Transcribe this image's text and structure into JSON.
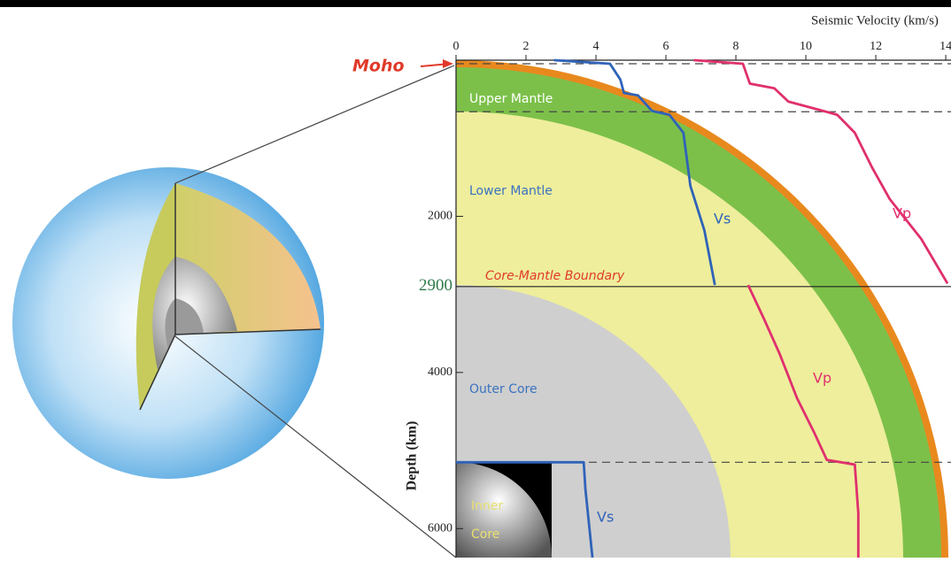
{
  "chart_data": {
    "type": "line",
    "x_label": "Seismic Velocity (km/s)",
    "y_label": "Depth (km)",
    "xlim": [
      0,
      14.15
    ],
    "xticks": [
      0,
      2,
      4,
      6,
      8,
      10,
      12,
      14
    ],
    "ylim": [
      0,
      6371
    ],
    "yticks": [
      2000,
      2900,
      4000,
      6000
    ],
    "dashed_depths": [
      45,
      660,
      5150
    ],
    "series": [
      {
        "name": "Vs",
        "color": "#2f63b8",
        "depth": [
          0,
          45,
          250,
          420,
          450,
          650,
          700,
          930,
          1610,
          2180,
          2880,
          null,
          5150,
          5150,
          5500,
          6371
        ],
        "values": [
          2.8,
          4.4,
          4.7,
          4.8,
          5.2,
          5.6,
          6.1,
          6.5,
          6.7,
          7.1,
          7.4,
          null,
          0,
          3.65,
          3.7,
          3.9
        ]
      },
      {
        "name": "Vp",
        "color": "#e0306e",
        "depth": [
          0,
          45,
          300,
          360,
          530,
          650,
          700,
          930,
          1380,
          1780,
          2290,
          2860,
          null,
          2880,
          3310,
          3760,
          4330,
          4780,
          5120,
          5180,
          5800,
          6371
        ],
        "values": [
          6.8,
          8.2,
          8.4,
          9.1,
          9.5,
          10.5,
          10.9,
          11.4,
          11.9,
          12.4,
          13.3,
          14.05,
          null,
          8.35,
          8.8,
          9.25,
          9.75,
          10.25,
          10.6,
          11.4,
          11.5,
          11.5
        ]
      }
    ],
    "annotations": [
      "Moho",
      "Upper Mantle",
      "Lower Mantle",
      "Core-Mantle Boundary",
      "Outer Core",
      "Inner Core"
    ]
  }
}
